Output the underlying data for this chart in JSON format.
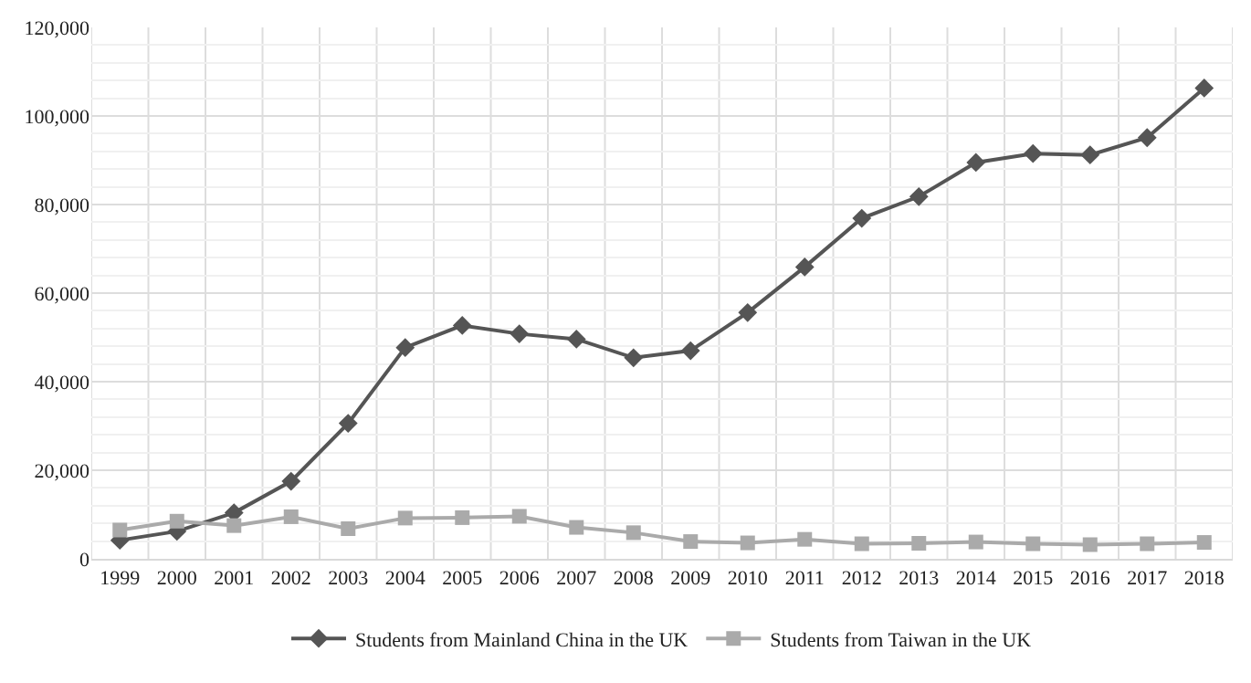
{
  "chart_data": {
    "type": "line",
    "categories": [
      "1999",
      "2000",
      "2001",
      "2002",
      "2003",
      "2004",
      "2005",
      "2006",
      "2007",
      "2008",
      "2009",
      "2010",
      "2011",
      "2012",
      "2013",
      "2014",
      "2015",
      "2016",
      "2017",
      "2018"
    ],
    "series": [
      {
        "name": "Students from Mainland China in the UK",
        "color": "#555555",
        "marker": "diamond",
        "values": [
          4200,
          6200,
          10400,
          17500,
          30600,
          47700,
          52700,
          50800,
          49600,
          45400,
          47000,
          55600,
          65900,
          76900,
          81800,
          89500,
          91500,
          91200,
          95100,
          106300
        ]
      },
      {
        "name": "Students from Taiwan in the UK",
        "color": "#aaaaaa",
        "marker": "square",
        "values": [
          6500,
          8500,
          7500,
          9500,
          6800,
          9200,
          9300,
          9600,
          7100,
          5900,
          3900,
          3600,
          4400,
          3400,
          3500,
          3800,
          3400,
          3200,
          3400,
          3700
        ]
      }
    ],
    "ylim": [
      0,
      120000
    ],
    "yticks": [
      {
        "value": 0,
        "label": "0"
      },
      {
        "value": 20000,
        "label": "20,000"
      },
      {
        "value": 40000,
        "label": "40,000"
      },
      {
        "value": 60000,
        "label": "60,000"
      },
      {
        "value": 80000,
        "label": "80,000"
      },
      {
        "value": 100000,
        "label": "100,000"
      },
      {
        "value": 120000,
        "label": "120,000"
      }
    ],
    "grid": true,
    "legend": "bottom"
  }
}
